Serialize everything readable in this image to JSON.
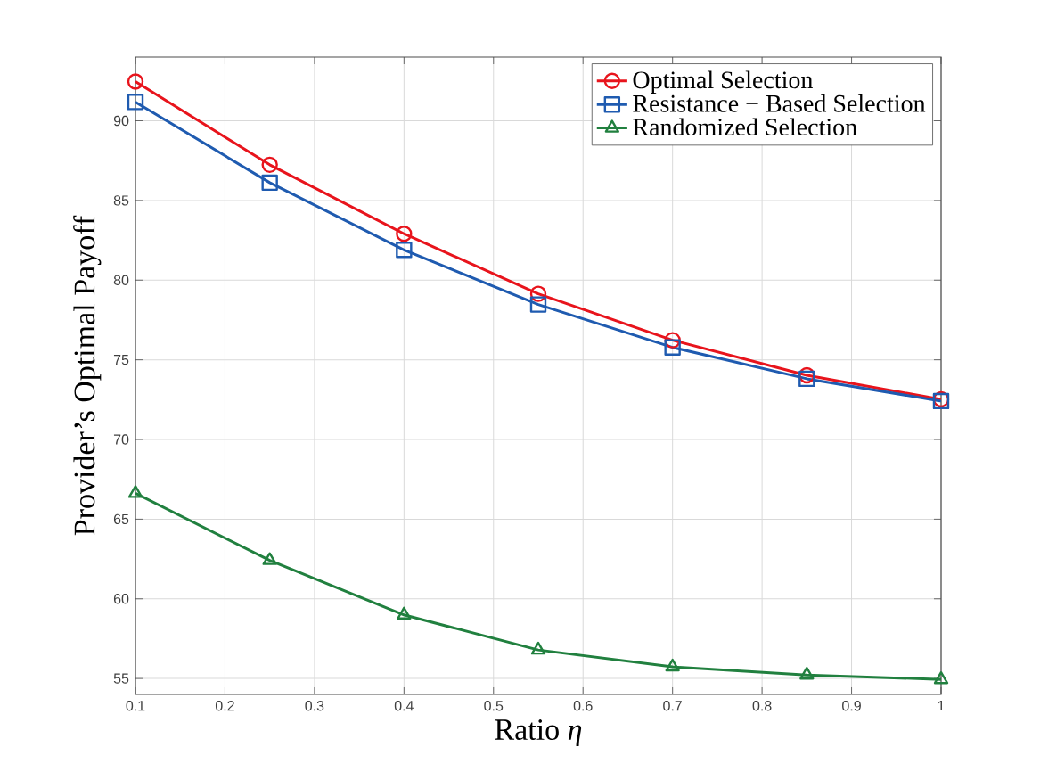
{
  "chart_data": {
    "type": "line",
    "xlabel": "Ratio *η*",
    "ylabel": "Provider’s Optimal Payoff",
    "x": [
      0.1,
      0.25,
      0.4,
      0.55,
      0.7,
      0.85,
      1
    ],
    "series": [
      {
        "name": "Optimal Selection",
        "color": "#e8141c",
        "marker": "circle",
        "values": [
          92.46,
          87.24,
          82.91,
          79.14,
          76.23,
          74.03,
          72.52
        ]
      },
      {
        "name": "Resistance − Based Selection",
        "color": "#1f5bb0",
        "marker": "square",
        "values": [
          91.18,
          86.12,
          81.9,
          78.47,
          75.78,
          73.81,
          72.41
        ]
      },
      {
        "name": "Randomized Selection",
        "color": "#21803f",
        "marker": "triangle",
        "values": [
          66.62,
          62.41,
          58.99,
          56.79,
          55.73,
          55.22,
          54.94
        ]
      }
    ],
    "xlim": [
      0.1,
      1
    ],
    "ylim": [
      54,
      94
    ],
    "xticks": [
      0.1,
      0.2,
      0.3,
      0.4,
      0.5,
      0.6,
      0.7,
      0.8,
      0.9,
      1
    ],
    "yticks": [
      55,
      60,
      65,
      70,
      75,
      80,
      85,
      90
    ],
    "grid": true,
    "legend": "top right",
    "line_style": "solid"
  }
}
